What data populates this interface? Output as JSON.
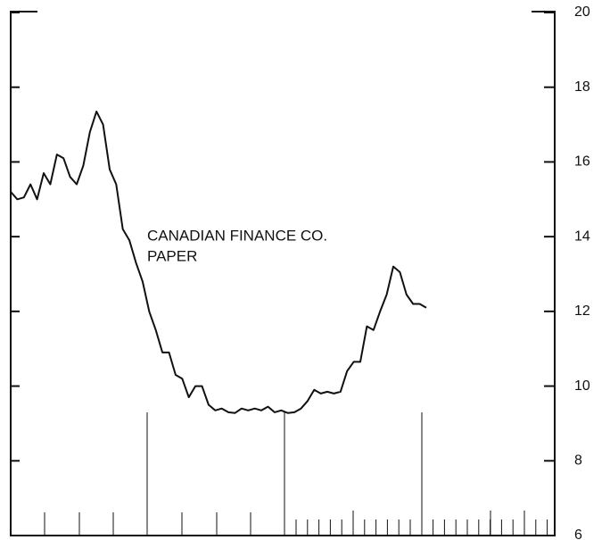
{
  "chart_data": {
    "type": "line",
    "annotation": [
      "CANADIAN FINANCE CO.",
      "PAPER"
    ],
    "categories": [
      null,
      null,
      null,
      null,
      null,
      null,
      null,
      null,
      null,
      null,
      null,
      null,
      null,
      null,
      null,
      null,
      null,
      null,
      null,
      null,
      null,
      null,
      null,
      null,
      null,
      null,
      null,
      null,
      null,
      null,
      null,
      null,
      null,
      null,
      null,
      null,
      null,
      null,
      null,
      null,
      null,
      null,
      null,
      null,
      null,
      null,
      null,
      null,
      null,
      null,
      null,
      null,
      null,
      null,
      null,
      null,
      null,
      null,
      null,
      null,
      null,
      null,
      null,
      null
    ],
    "series": [
      {
        "name": null,
        "color": "#111111",
        "values": [
          15.2,
          15.0,
          15.05,
          15.4,
          15.0,
          15.7,
          15.4,
          16.2,
          16.1,
          15.6,
          15.4,
          15.9,
          16.8,
          17.35,
          17.0,
          15.8,
          15.4,
          14.2,
          13.9,
          13.3,
          12.8,
          12.0,
          11.5,
          10.9,
          10.9,
          10.3,
          10.2,
          9.7,
          10.0,
          10.0,
          9.5,
          9.35,
          9.4,
          9.3,
          9.28,
          9.4,
          9.35,
          9.4,
          9.35,
          9.45,
          9.3,
          9.35,
          9.28,
          9.3,
          9.4,
          9.6,
          9.9,
          9.8,
          9.85,
          9.8,
          9.85,
          10.4,
          10.65,
          10.65,
          11.6,
          11.5,
          12.0,
          12.45,
          13.2,
          13.05,
          12.45,
          12.2,
          12.2,
          12.1
        ]
      }
    ],
    "ylim": [
      6,
      20
    ],
    "yticks": [
      6,
      8,
      10,
      12,
      14,
      16,
      18,
      20
    ],
    "y_axis_side": "right"
  }
}
